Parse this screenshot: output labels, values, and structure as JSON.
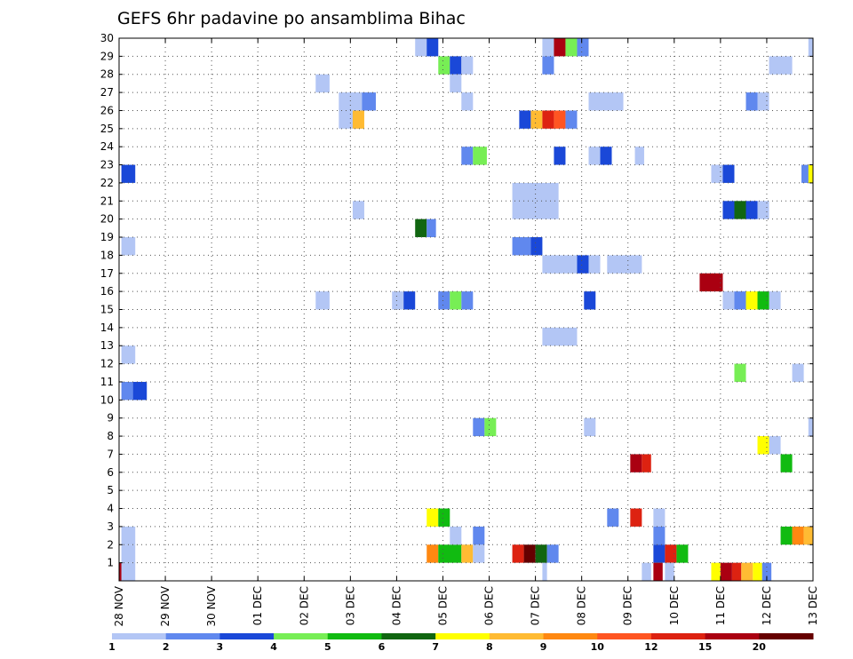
{
  "chart_data": {
    "type": "heatmap",
    "title": "GEFS 6hr padavine po ansamblima Bihac",
    "xlabel": "",
    "ylabel": "",
    "x_tick_labels": [
      "28 NOV",
      "29 NOV",
      "30 NOV",
      "01 DEC",
      "02 DEC",
      "03 DEC",
      "04 DEC",
      "05 DEC",
      "06 DEC",
      "07 DEC",
      "08 DEC",
      "09 DEC",
      "10 DEC",
      "11 DEC",
      "12 DEC",
      "13 DEC"
    ],
    "x_range": [
      0,
      15
    ],
    "y_tick_labels": [
      1,
      2,
      3,
      4,
      5,
      6,
      7,
      8,
      9,
      10,
      11,
      12,
      13,
      14,
      15,
      16,
      17,
      18,
      19,
      20,
      21,
      22,
      23,
      24,
      25,
      26,
      27,
      28,
      29,
      30
    ],
    "y_range": [
      0,
      30
    ],
    "grid": true,
    "colorbar": {
      "labels": [
        "1",
        "2",
        "3",
        "4",
        "5",
        "6",
        "7",
        "8",
        "9",
        "10",
        "12",
        "15",
        "20"
      ],
      "colors": [
        "#b3c6f5",
        "#6088ee",
        "#1a48d8",
        "#77ee55",
        "#11bb11",
        "#116611",
        "#ffff00",
        "#ffbb33",
        "#ff8811",
        "#ff5522",
        "#dd2211",
        "#aa0011",
        "#660000"
      ]
    },
    "cells": [
      [
        0.05,
        22,
        0.3,
        1,
        2
      ],
      [
        0.05,
        18,
        0.3,
        1,
        0
      ],
      [
        0.05,
        12,
        0.3,
        1,
        0
      ],
      [
        0.05,
        10,
        0.25,
        1,
        1
      ],
      [
        0.3,
        10,
        0.3,
        1,
        2
      ],
      [
        0.05,
        2,
        0.3,
        1,
        0
      ],
      [
        0.05,
        1,
        0.3,
        1,
        0
      ],
      [
        0.05,
        0,
        0.3,
        1,
        0
      ],
      [
        4.25,
        27,
        0.3,
        1,
        0
      ],
      [
        4.25,
        15,
        0.3,
        1,
        0
      ],
      [
        4.75,
        26,
        0.5,
        1,
        0
      ],
      [
        4.75,
        25,
        0.5,
        1,
        0
      ],
      [
        5.25,
        26,
        0.3,
        1,
        1
      ],
      [
        5.05,
        25,
        0.25,
        1,
        7
      ],
      [
        5.05,
        20,
        0.25,
        1,
        0
      ],
      [
        5.9,
        15,
        0.25,
        1,
        0
      ],
      [
        6.15,
        15,
        0.25,
        1,
        2
      ],
      [
        6.4,
        29,
        0.25,
        1,
        0
      ],
      [
        6.65,
        29,
        0.25,
        1,
        2
      ],
      [
        6.9,
        28,
        0.25,
        1,
        3
      ],
      [
        7.15,
        28,
        0.25,
        1,
        2
      ],
      [
        7.4,
        28,
        0.25,
        1,
        0
      ],
      [
        7.15,
        27,
        0.25,
        1,
        0
      ],
      [
        7.4,
        26,
        0.25,
        1,
        0
      ],
      [
        7.4,
        23,
        0.25,
        1,
        1
      ],
      [
        7.65,
        23,
        0.3,
        1,
        3
      ],
      [
        6.4,
        19,
        0.25,
        1,
        5
      ],
      [
        6.65,
        19,
        0.2,
        1,
        1
      ],
      [
        6.9,
        15,
        0.25,
        1,
        1
      ],
      [
        7.15,
        15,
        0.25,
        1,
        3
      ],
      [
        7.4,
        15,
        0.25,
        1,
        1
      ],
      [
        6.65,
        3,
        0.25,
        1,
        6
      ],
      [
        6.9,
        3,
        0.25,
        1,
        4
      ],
      [
        6.65,
        1,
        0.25,
        1,
        8
      ],
      [
        6.9,
        1,
        0.5,
        1,
        4
      ],
      [
        7.4,
        1,
        0.25,
        1,
        7
      ],
      [
        7.65,
        1,
        0.25,
        1,
        0
      ],
      [
        7.15,
        2,
        0.25,
        1,
        0
      ],
      [
        7.65,
        2,
        0.25,
        1,
        1
      ],
      [
        7.65,
        8,
        0.25,
        1,
        1
      ],
      [
        7.9,
        8,
        0.25,
        1,
        3
      ],
      [
        9.15,
        29,
        0.25,
        1,
        0
      ],
      [
        9.4,
        29,
        0.25,
        1,
        11
      ],
      [
        9.65,
        29,
        0.25,
        1,
        3
      ],
      [
        9.9,
        29,
        0.25,
        1,
        1
      ],
      [
        9.15,
        28,
        0.25,
        1,
        1
      ],
      [
        8.65,
        25,
        0.25,
        1,
        2
      ],
      [
        8.9,
        25,
        0.25,
        1,
        7
      ],
      [
        9.15,
        25,
        0.25,
        1,
        10
      ],
      [
        9.4,
        25,
        0.25,
        1,
        9
      ],
      [
        9.65,
        25,
        0.25,
        1,
        1
      ],
      [
        9.4,
        23,
        0.25,
        1,
        2
      ],
      [
        10.15,
        26,
        0.75,
        1,
        0
      ],
      [
        10.15,
        23,
        0.25,
        1,
        0
      ],
      [
        10.4,
        23,
        0.25,
        1,
        2
      ],
      [
        11.15,
        23,
        0.2,
        1,
        0
      ],
      [
        8.5,
        20,
        1,
        2,
        0
      ],
      [
        8.5,
        18,
        0.4,
        1,
        1
      ],
      [
        8.9,
        18,
        0.25,
        1,
        2
      ],
      [
        9.15,
        17,
        0.75,
        1,
        0
      ],
      [
        9.9,
        17,
        0.25,
        1,
        2
      ],
      [
        10.15,
        17,
        0.25,
        1,
        0
      ],
      [
        10.55,
        17,
        0.75,
        1,
        0
      ],
      [
        10.05,
        15,
        0.25,
        1,
        2
      ],
      [
        9.15,
        13,
        0.75,
        1,
        0
      ],
      [
        10.05,
        8,
        0.25,
        1,
        0
      ],
      [
        9.15,
        0,
        0.1,
        1,
        0
      ],
      [
        8.5,
        1,
        0.25,
        1,
        10
      ],
      [
        8.75,
        1,
        0.25,
        1,
        12
      ],
      [
        9,
        1,
        0.25,
        1,
        5
      ],
      [
        9.25,
        1,
        0.25,
        1,
        1
      ],
      [
        10.55,
        3,
        0.25,
        1,
        1
      ],
      [
        11.05,
        3,
        0.25,
        1,
        10
      ],
      [
        11.05,
        6,
        0.25,
        1,
        11
      ],
      [
        11.3,
        6,
        0.2,
        1,
        10
      ],
      [
        11.55,
        3,
        0.25,
        1,
        0
      ],
      [
        11.55,
        2,
        0.25,
        1,
        1
      ],
      [
        11.55,
        1,
        0.25,
        1,
        2
      ],
      [
        11.8,
        1,
        0.25,
        1,
        10
      ],
      [
        12.05,
        1,
        0.25,
        1,
        4
      ],
      [
        11.3,
        0,
        0.2,
        1,
        0
      ],
      [
        11.55,
        0,
        0.2,
        1,
        11
      ],
      [
        11.8,
        0,
        0.2,
        1,
        0
      ],
      [
        12.55,
        16,
        0.5,
        1,
        11
      ],
      [
        12.8,
        22,
        0.25,
        1,
        0
      ],
      [
        13.05,
        22,
        0.25,
        1,
        2
      ],
      [
        13.05,
        20,
        0.25,
        1,
        2
      ],
      [
        13.3,
        20,
        0.25,
        1,
        5
      ],
      [
        13.55,
        20,
        0.25,
        1,
        2
      ],
      [
        13.8,
        20,
        0.25,
        1,
        0
      ],
      [
        13.05,
        15,
        0.25,
        1,
        0
      ],
      [
        13.3,
        15,
        0.25,
        1,
        1
      ],
      [
        13.55,
        15,
        0.25,
        1,
        6
      ],
      [
        13.8,
        15,
        0.25,
        1,
        4
      ],
      [
        14.05,
        15,
        0.25,
        1,
        0
      ],
      [
        13.55,
        26,
        0.25,
        1,
        1
      ],
      [
        13.8,
        26,
        0.25,
        1,
        0
      ],
      [
        14.05,
        28,
        0.5,
        1,
        0
      ],
      [
        13.3,
        11,
        0.25,
        1,
        3
      ],
      [
        14.55,
        11,
        0.25,
        1,
        0
      ],
      [
        13.8,
        7,
        0.25,
        1,
        6
      ],
      [
        14.05,
        7,
        0.25,
        1,
        0
      ],
      [
        14.3,
        6,
        0.25,
        1,
        4
      ],
      [
        14.3,
        2,
        0.25,
        1,
        4
      ],
      [
        14.55,
        2,
        0.25,
        1,
        8
      ],
      [
        14.8,
        2,
        0.2,
        1,
        7
      ],
      [
        12.8,
        0,
        0.2,
        1,
        6
      ],
      [
        13.0,
        0,
        0.25,
        1,
        11
      ],
      [
        13.25,
        0,
        0.2,
        1,
        10
      ],
      [
        13.45,
        0,
        0.25,
        1,
        7
      ],
      [
        13.7,
        0,
        0.2,
        1,
        6
      ],
      [
        13.9,
        0,
        0.2,
        1,
        1
      ],
      [
        14.75,
        22,
        0.25,
        1,
        1
      ],
      [
        14.9,
        22,
        0.1,
        1,
        6
      ],
      [
        14.9,
        29,
        0.1,
        1,
        0
      ],
      [
        14.9,
        8,
        0.1,
        1,
        0
      ],
      [
        0,
        0,
        0.05,
        1,
        11
      ]
    ]
  }
}
